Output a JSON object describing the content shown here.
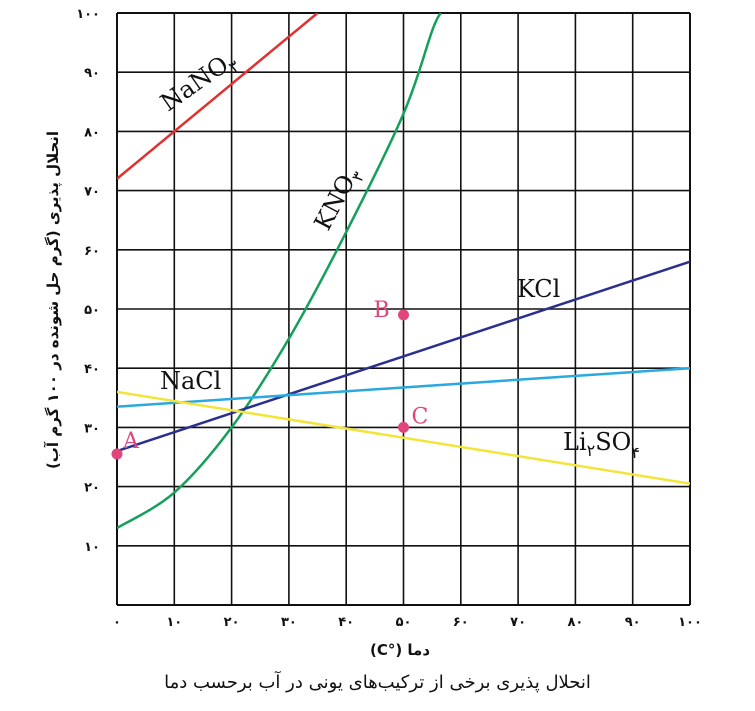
{
  "caption": "انحلال پذیری برخی از ترکیب‌های یونی در آب برحسب دما",
  "chart_data": {
    "type": "line",
    "xlabel": "دما (°C)",
    "ylabel": "انحلال پذیری (گرم حل شونده در ۱۰۰ گرم آب)",
    "xlim": [
      0,
      100
    ],
    "ylim": [
      0,
      100
    ],
    "x_ticks": [
      "۰",
      "۱۰",
      "۲۰",
      "۳۰",
      "۴۰",
      "۵۰",
      "۶۰",
      "۷۰",
      "۸۰",
      "۹۰",
      "۱۰۰"
    ],
    "y_ticks": [
      "۱۰",
      "۲۰",
      "۳۰",
      "۴۰",
      "۵۰",
      "۶۰",
      "۷۰",
      "۸۰",
      "۹۰",
      "۱۰۰"
    ],
    "grid": true,
    "series": [
      {
        "name": "NaNO",
        "subscript": "۳",
        "color": "#e03030",
        "x": [
          0,
          10,
          20,
          30,
          35
        ],
        "y": [
          72,
          80,
          88,
          96,
          100
        ]
      },
      {
        "name": "KNO",
        "subscript": "۳",
        "color": "#14a05a",
        "x": [
          0,
          10,
          20,
          30,
          40,
          50,
          55,
          56.5
        ],
        "y": [
          13,
          19,
          30,
          45,
          63,
          83,
          97,
          100
        ]
      },
      {
        "name": "KCl",
        "subscript": "",
        "color": "#2b2f8f",
        "x": [
          0,
          100
        ],
        "y": [
          26,
          58
        ]
      },
      {
        "name": "NaCl",
        "subscript": "",
        "color": "#2aa9e0",
        "x": [
          0,
          100
        ],
        "y": [
          33.5,
          40
        ]
      },
      {
        "name": "Li",
        "subscript": "۲",
        "name2": "SO",
        "subscript2": "۴",
        "color": "#f2e53a",
        "x": [
          0,
          100
        ],
        "y": [
          36,
          20.5
        ]
      }
    ],
    "points": [
      {
        "label": "A",
        "x": 0,
        "y": 25.5
      },
      {
        "label": "B",
        "x": 50,
        "y": 49
      },
      {
        "label": "C",
        "x": 50,
        "y": 30
      }
    ]
  }
}
